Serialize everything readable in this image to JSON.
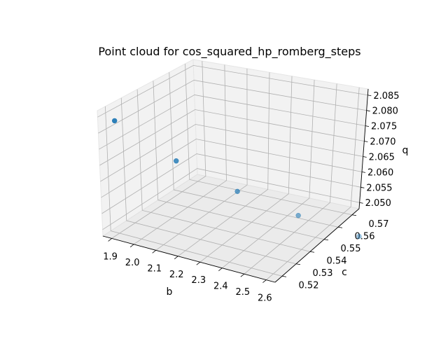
{
  "chart_data": {
    "type": "scatter3d",
    "title": "Point cloud for cos_squared_hp_romberg_steps",
    "xlabel": "b",
    "ylabel": "c",
    "zlabel": "q",
    "x_ticks": [
      "1.9",
      "2.0",
      "2.1",
      "2.2",
      "2.3",
      "2.4",
      "2.5",
      "2.6"
    ],
    "y_ticks": [
      "0.52",
      "0.53",
      "0.54",
      "0.55",
      "0.56",
      "0.57"
    ],
    "z_ticks": [
      "2.050",
      "2.055",
      "2.060",
      "2.065",
      "2.070",
      "2.075",
      "2.080",
      "2.085"
    ],
    "grid": true,
    "point_color": "#1f77b4",
    "points": [
      {
        "b": 1.9,
        "c": 0.52,
        "q": 2.083
      },
      {
        "b": 2.1,
        "c": 0.53,
        "q": 2.071
      },
      {
        "b": 2.3,
        "c": 0.54,
        "q": 2.062
      },
      {
        "b": 2.5,
        "c": 0.55,
        "q": 2.055
      },
      {
        "b": 2.7,
        "c": 0.56,
        "q": 2.049
      }
    ]
  }
}
